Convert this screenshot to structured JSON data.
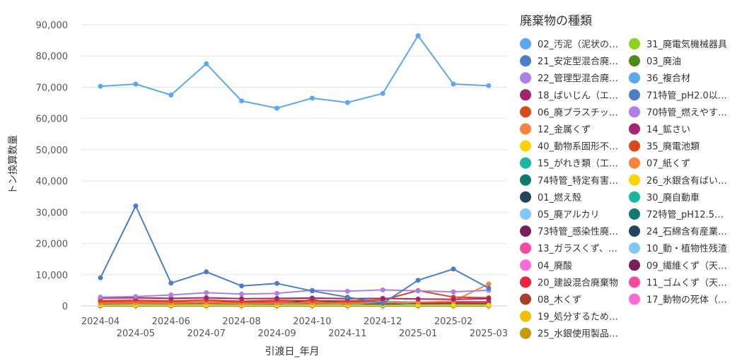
{
  "chart_data": {
    "type": "line",
    "xlabel": "引渡日_年月",
    "ylabel": "トン換算数量",
    "ylim": [
      0,
      90000
    ],
    "yticks": [
      "0",
      "10,000",
      "20,000",
      "30,000",
      "40,000",
      "50,000",
      "60,000",
      "70,000",
      "80,000",
      "90,000"
    ],
    "categories": [
      "2024-04",
      "2024-05",
      "2024-06",
      "2024-07",
      "2024-08",
      "2024-09",
      "2024-10",
      "2024-11",
      "2024-12",
      "2025-01",
      "2025-02",
      "2025-03"
    ],
    "grid": true,
    "legend_placement": "right",
    "legend_title": "廃棄物の種類",
    "series": [
      {
        "name": "02_汚泥（泥状の…",
        "color": "#5ba8f0",
        "values": [
          70300,
          71000,
          67500,
          77500,
          65600,
          63300,
          66500,
          65100,
          68000,
          86500,
          71000,
          70500
        ]
      },
      {
        "name": "21_安定型混合廃…",
        "color": "#4a7fc6",
        "values": [
          9000,
          32000,
          7300,
          10900,
          6400,
          7200,
          4800,
          2800,
          800,
          8200,
          11800,
          5700
        ]
      },
      {
        "name": "22_管理型混合廃…",
        "color": "#b07fe5",
        "values": [
          2800,
          3000,
          3500,
          4200,
          3800,
          4000,
          5000,
          4700,
          5100,
          4800,
          4500,
          5000
        ]
      },
      {
        "name": "18_ばいじん（エ…",
        "color": "#a6236f",
        "values": [
          2500,
          2600,
          2400,
          2600,
          2300,
          2400,
          2500,
          2300,
          2400,
          2200,
          2100,
          2300
        ]
      },
      {
        "name": "06_廃プラスチッ…",
        "color": "#d94a1a",
        "values": [
          1700,
          1800,
          1600,
          1900,
          1500,
          1800,
          1700,
          1600,
          1900,
          4900,
          2800,
          2600
        ]
      },
      {
        "name": "12_金属くず",
        "color": "#f5843f",
        "values": [
          900,
          1000,
          900,
          1100,
          800,
          900,
          1000,
          900,
          1000,
          1200,
          1500,
          7000
        ]
      },
      {
        "name": "40_動物系固形不…",
        "color": "#fbd400",
        "values": [
          200,
          200,
          200,
          200,
          200,
          200,
          200,
          200,
          200,
          200,
          200,
          200
        ]
      },
      {
        "name": "15_がれき類（工…",
        "color": "#17b8a0",
        "values": [
          300,
          300,
          300,
          300,
          300,
          300,
          300,
          300,
          1400,
          300,
          300,
          300
        ]
      },
      {
        "name": "74特管_特定有害…",
        "color": "#107a6e",
        "values": [
          100,
          100,
          100,
          100,
          100,
          100,
          100,
          100,
          100,
          100,
          100,
          100
        ]
      },
      {
        "name": "01_燃え殻",
        "color": "#24445e",
        "values": [
          400,
          300,
          300,
          300,
          400,
          600,
          2000,
          600,
          500,
          400,
          400,
          400
        ]
      },
      {
        "name": "05_廃アルカリ",
        "color": "#7fc8f8",
        "values": [
          300,
          300,
          300,
          300,
          300,
          300,
          300,
          300,
          300,
          300,
          300,
          300
        ]
      },
      {
        "name": "73特管_感染性廃…",
        "color": "#7a1f5c",
        "values": [
          100,
          100,
          100,
          100,
          100,
          100,
          100,
          100,
          100,
          100,
          100,
          100
        ]
      },
      {
        "name": "13_ガラスくず、…",
        "color": "#fa4aa0",
        "values": [
          200,
          200,
          200,
          200,
          200,
          200,
          200,
          200,
          200,
          200,
          200,
          200
        ]
      },
      {
        "name": "04_廃酸",
        "color": "#f96cd6",
        "values": [
          100,
          100,
          100,
          100,
          100,
          100,
          100,
          100,
          100,
          100,
          100,
          100
        ]
      },
      {
        "name": "20_建設混合廃棄物",
        "color": "#e8253d",
        "values": [
          1300,
          1300,
          1200,
          1300,
          1200,
          1300,
          1200,
          1300,
          1300,
          1200,
          1300,
          1300
        ]
      },
      {
        "name": "08_木くず",
        "color": "#a6402b",
        "values": [
          800,
          900,
          800,
          900,
          800,
          900,
          800,
          900,
          900,
          800,
          900,
          800
        ]
      },
      {
        "name": "19_処分するため…",
        "color": "#f0c000",
        "values": [
          100,
          100,
          100,
          100,
          100,
          100,
          100,
          100,
          100,
          100,
          100,
          100
        ]
      },
      {
        "name": "25_水銀使用製品…",
        "color": "#c49b0a",
        "values": [
          100,
          100,
          100,
          100,
          100,
          100,
          100,
          100,
          100,
          100,
          100,
          100
        ]
      },
      {
        "name": "31_廃電気機械器具",
        "color": "#8dd31a",
        "values": [
          100,
          100,
          100,
          100,
          100,
          100,
          100,
          100,
          100,
          100,
          100,
          100
        ]
      },
      {
        "name": "03_廃油",
        "color": "#4e8a1a",
        "values": [
          400,
          400,
          400,
          400,
          400,
          400,
          400,
          400,
          400,
          400,
          400,
          400
        ]
      },
      {
        "name": "36_複合材",
        "color": "#5ba8f0",
        "values": [
          100,
          100,
          100,
          100,
          100,
          100,
          100,
          100,
          100,
          100,
          100,
          100
        ]
      },
      {
        "name": "71特管_pH2.0以…",
        "color": "#4a7fc6",
        "values": [
          100,
          100,
          100,
          100,
          100,
          100,
          100,
          100,
          100,
          100,
          100,
          100
        ]
      },
      {
        "name": "70特管_燃えやす…",
        "color": "#b07fe5",
        "values": [
          100,
          100,
          100,
          100,
          100,
          100,
          100,
          100,
          100,
          100,
          100,
          100
        ]
      },
      {
        "name": "14_鉱さい",
        "color": "#a6236f",
        "values": [
          100,
          100,
          100,
          100,
          100,
          100,
          100,
          100,
          100,
          100,
          100,
          100
        ]
      },
      {
        "name": "35_廃電池類",
        "color": "#d94a1a",
        "values": [
          100,
          100,
          100,
          100,
          100,
          100,
          100,
          100,
          100,
          100,
          100,
          100
        ]
      },
      {
        "name": "07_紙くず",
        "color": "#f5843f",
        "values": [
          200,
          200,
          200,
          200,
          200,
          200,
          200,
          200,
          200,
          200,
          200,
          200
        ]
      },
      {
        "name": "26_水銀含有ばい…",
        "color": "#fbd400",
        "values": [
          50,
          50,
          50,
          50,
          50,
          50,
          50,
          50,
          50,
          50,
          50,
          50
        ]
      },
      {
        "name": "30_廃自動車",
        "color": "#17b8a0",
        "values": [
          50,
          50,
          50,
          50,
          50,
          50,
          50,
          50,
          50,
          50,
          50,
          50
        ]
      },
      {
        "name": "72特管_pH12.5…",
        "color": "#107a6e",
        "values": [
          50,
          50,
          50,
          50,
          50,
          50,
          50,
          50,
          50,
          50,
          50,
          50
        ]
      },
      {
        "name": "24_石綿含有産業…",
        "color": "#24445e",
        "values": [
          300,
          300,
          300,
          300,
          300,
          300,
          300,
          300,
          300,
          300,
          300,
          300
        ]
      },
      {
        "name": "10_動・植物性残渣",
        "color": "#7fc8f8",
        "values": [
          50,
          50,
          50,
          50,
          50,
          50,
          50,
          50,
          50,
          50,
          50,
          50
        ]
      },
      {
        "name": "09_繊維くず（天…",
        "color": "#7a1f5c",
        "values": [
          50,
          50,
          50,
          50,
          50,
          50,
          50,
          50,
          50,
          50,
          50,
          50
        ]
      },
      {
        "name": "11_ゴムくず（天…",
        "color": "#fa4aa0",
        "values": [
          50,
          50,
          50,
          50,
          50,
          50,
          50,
          50,
          50,
          50,
          50,
          50
        ]
      },
      {
        "name": "17_動物の死体（…",
        "color": "#f96cd6",
        "values": [
          50,
          50,
          50,
          50,
          50,
          50,
          50,
          50,
          50,
          50,
          50,
          50
        ]
      }
    ]
  }
}
